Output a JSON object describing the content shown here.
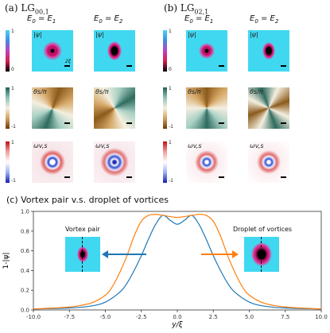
{
  "panel_a": {
    "label": "(a) LG",
    "sub": "00,1",
    "col1": "E",
    "col1_sub0": "0",
    "col1_eq": " = E",
    "col1_sub1": "1",
    "col2": "E",
    "col2_sub0": "0",
    "col2_eq": " = E",
    "col2_sub2": "2",
    "scale_label": "2ξ"
  },
  "panel_b": {
    "label": "(b) LG",
    "sub": "02,1",
    "col1": "E",
    "col1_sub0": "0",
    "col1_eq": " = E",
    "col1_sub1": "1",
    "col2": "E",
    "col2_sub0": "0",
    "col2_eq": " = E",
    "col2_sub2": "2"
  },
  "row_labels": {
    "psi": "|ψ|",
    "theta": "θs/π",
    "omega": "ωv,s"
  },
  "colorbars": {
    "psi": {
      "top": "1",
      "bottom": "0"
    },
    "theta": {
      "top": "1",
      "bottom": "-1"
    },
    "omega": {
      "top": "1",
      "bottom": "-1"
    }
  },
  "panel_c": {
    "title": "(c)  Vortex pair v.s. droplet of vortices",
    "left_annotation": "Vortex pair",
    "right_annotation": "Droplet of vortices"
  },
  "colors": {
    "blue_series": "#1f77b4",
    "orange_series": "#ff7f0e",
    "psi_bg": "#40d8f0",
    "theta_brown": "#8b5a1a",
    "theta_green": "#2e6b5e"
  },
  "chart_data": {
    "type": "line",
    "title": "Vortex pair v.s. droplet of vortices",
    "xlabel": "y/ξ",
    "ylabel": "1-|ψ|",
    "xlim": [
      -10,
      10
    ],
    "ylim": [
      0,
      1.0
    ],
    "x_ticks": [
      "-10.0",
      "-7.5",
      "-5.0",
      "-2.5",
      "0.0",
      "2.5",
      "5.0",
      "7.5",
      "10.0"
    ],
    "y_ticks": [
      "0.0",
      "0.2",
      "0.4",
      "0.6",
      "0.8",
      "1.0"
    ],
    "grid": false,
    "series": [
      {
        "color": "#1f77b4",
        "x": [
          -10,
          -7.5,
          -6,
          -5,
          -4,
          -3.5,
          -3,
          -2.5,
          -2,
          -1.5,
          -1,
          -0.5,
          0,
          0.5,
          1,
          1.5,
          2,
          2.5,
          3,
          3.5,
          4,
          5,
          6,
          7.5,
          10
        ],
        "y": [
          0.01,
          0.02,
          0.04,
          0.08,
          0.18,
          0.27,
          0.4,
          0.55,
          0.72,
          0.87,
          0.96,
          0.91,
          0.87,
          0.91,
          0.96,
          0.87,
          0.72,
          0.55,
          0.4,
          0.27,
          0.18,
          0.08,
          0.04,
          0.02,
          0.01
        ]
      },
      {
        "color": "#ff7f0e",
        "x": [
          -10,
          -7.5,
          -6,
          -5,
          -4.5,
          -4,
          -3.5,
          -3,
          -2.5,
          -2,
          -1.5,
          -1,
          0,
          1,
          1.5,
          2,
          2.5,
          3,
          3.5,
          4,
          4.5,
          5,
          6,
          7.5,
          10
        ],
        "y": [
          0.01,
          0.03,
          0.07,
          0.15,
          0.24,
          0.38,
          0.55,
          0.75,
          0.9,
          0.96,
          0.97,
          0.96,
          0.94,
          0.96,
          0.97,
          0.96,
          0.9,
          0.75,
          0.55,
          0.38,
          0.24,
          0.15,
          0.07,
          0.03,
          0.01
        ]
      }
    ]
  }
}
